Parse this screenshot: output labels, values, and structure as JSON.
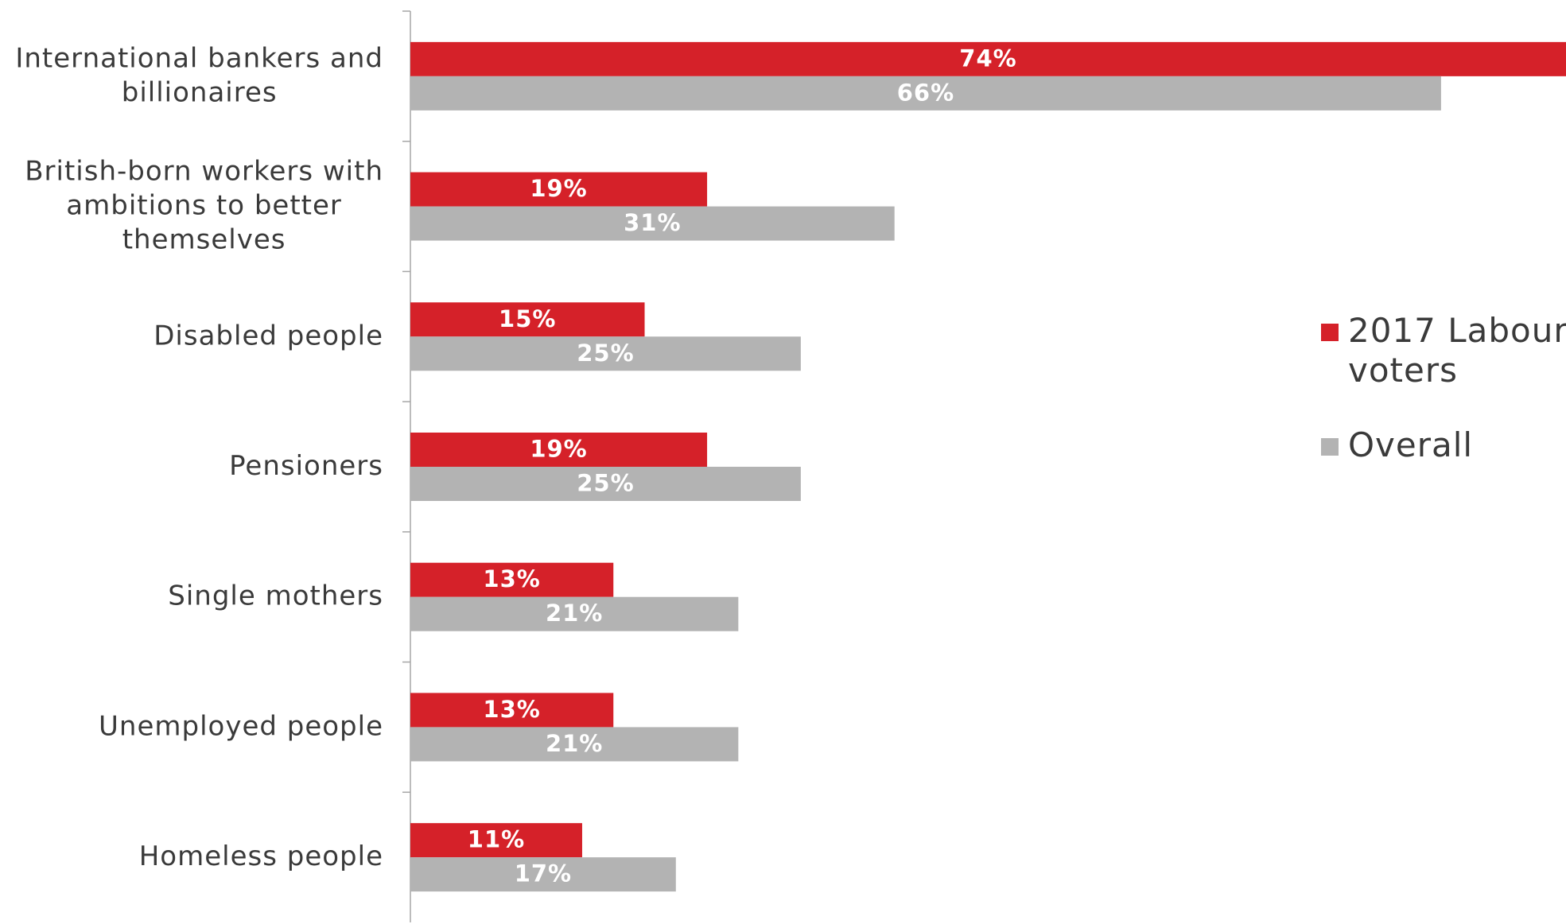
{
  "chart_data": {
    "type": "bar",
    "orientation": "horizontal",
    "categories": [
      "International bankers and billionaires",
      "British-born workers with ambitions to better themselves",
      "Disabled people",
      "Pensioners",
      "Single mothers",
      "Unemployed people",
      "Homeless people"
    ],
    "category_lines": [
      [
        "International bankers and",
        "billionaires"
      ],
      [
        "British-born workers with",
        "ambitions to better",
        "themselves"
      ],
      [
        "Disabled people"
      ],
      [
        "Pensioners"
      ],
      [
        "Single mothers"
      ],
      [
        "Unemployed people"
      ],
      [
        "Homeless people"
      ]
    ],
    "series": [
      {
        "name": "2017 Labour voters",
        "color": "#d52129",
        "values": [
          74,
          19,
          15,
          19,
          13,
          13,
          11
        ],
        "labels": [
          "74%",
          "19%",
          "15%",
          "19%",
          "13%",
          "13%",
          "11%"
        ]
      },
      {
        "name": "Overall",
        "color": "#b3b3b3",
        "values": [
          66,
          31,
          25,
          25,
          21,
          21,
          17
        ],
        "labels": [
          "66%",
          "31%",
          "25%",
          "25%",
          "21%",
          "21%",
          "17%"
        ]
      }
    ],
    "xlim": [
      0,
      74
    ],
    "grid": false,
    "legend_position": "right",
    "title": "",
    "xlabel": "",
    "ylabel": ""
  }
}
